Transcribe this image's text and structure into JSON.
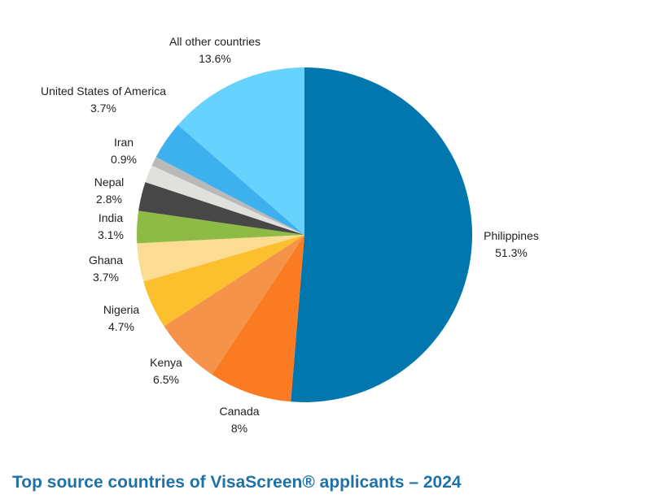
{
  "chart_data": {
    "type": "pie",
    "title": "Top source countries of VisaScreen® applicants – 2024",
    "slices": [
      {
        "name": "Philippines",
        "label": "51.3%",
        "value": 51.3,
        "color": "#0277ad"
      },
      {
        "name": "Canada",
        "label": "8%",
        "value": 8.0,
        "color": "#fb7b23"
      },
      {
        "name": "Kenya",
        "label": "6.5%",
        "value": 6.5,
        "color": "#f6934a"
      },
      {
        "name": "Nigeria",
        "label": "4.7%",
        "value": 4.7,
        "color": "#fcbf2e"
      },
      {
        "name": "Ghana",
        "label": "3.7%",
        "value": 3.7,
        "color": "#fcdb92"
      },
      {
        "name": "India",
        "label": "3.1%",
        "value": 3.1,
        "color": "#8dbb46"
      },
      {
        "name": "Nepal",
        "label": "2.8%",
        "value": 2.8,
        "color": "#474747"
      },
      {
        "name": "",
        "label": "",
        "value": 1.7,
        "color": "#e0e0dc"
      },
      {
        "name": "Iran",
        "label": "0.9%",
        "value": 0.9,
        "color": "#b9b9b9"
      },
      {
        "name": "United States of America",
        "label": "3.7%",
        "value": 3.7,
        "color": "#3cb1ee"
      },
      {
        "name": "All other countries",
        "label": "13.6%",
        "value": 13.6,
        "color": "#67d2fd"
      }
    ]
  }
}
